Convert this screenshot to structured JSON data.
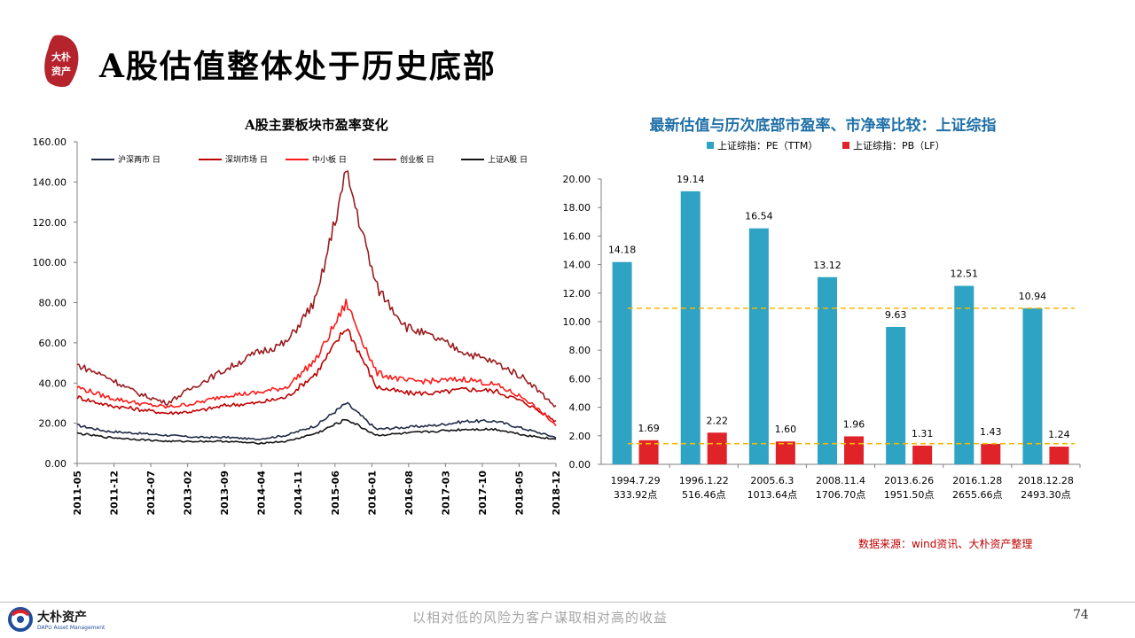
{
  "header": {
    "title": "A股估值整体处于历史底部",
    "logo_text": [
      "大朴",
      "资产"
    ],
    "brand_color": "#b5232d"
  },
  "footer": {
    "brand": "大朴资产",
    "brand_en": "DAPU Asset Management",
    "slogan": "以相对低的风险为客户谋取相对高的收益",
    "page_number": "74"
  },
  "source_note": "数据来源：wind资讯、大朴资产整理",
  "chart_data": [
    {
      "type": "line",
      "title": "A股主要板块市盈率变化",
      "ylim": [
        0,
        160
      ],
      "yticks": [
        "0.00",
        "20.00",
        "40.00",
        "60.00",
        "80.00",
        "100.00",
        "120.00",
        "140.00",
        "160.00"
      ],
      "x_ticks": [
        "2011-05",
        "2011-12",
        "2012-07",
        "2013-02",
        "2013-09",
        "2014-04",
        "2014-11",
        "2015-06",
        "2016-01",
        "2016-08",
        "2017-03",
        "2017-10",
        "2018-05",
        "2018-12"
      ],
      "legend_position": "top",
      "grid": false,
      "series": [
        {
          "name": "沪深两市 日",
          "color": "#1f2a44",
          "values": [
            19,
            16,
            15,
            14,
            13,
            13,
            12,
            14,
            19,
            30,
            17,
            18,
            19,
            21,
            21,
            17,
            13
          ]
        },
        {
          "name": "深圳市场 日",
          "color": "#c00000",
          "values": [
            33,
            29,
            27,
            25,
            26,
            29,
            30,
            33,
            45,
            68,
            38,
            35,
            35,
            37,
            36,
            30,
            21
          ]
        },
        {
          "name": "中小板 日",
          "color": "#ff1a1a",
          "values": [
            38,
            33,
            30,
            28,
            30,
            34,
            35,
            38,
            52,
            80,
            45,
            41,
            41,
            42,
            39,
            32,
            19
          ]
        },
        {
          "name": "创业板 日",
          "color": "#9b1b1f",
          "values": [
            49,
            43,
            35,
            30,
            39,
            47,
            55,
            60,
            82,
            145,
            88,
            68,
            62,
            55,
            50,
            42,
            28
          ]
        },
        {
          "name": "上证A股 日",
          "color": "#141414",
          "values": [
            15,
            13,
            12,
            11,
            11,
            11,
            10,
            11,
            15,
            22,
            14,
            15,
            16,
            17,
            17,
            14,
            12
          ]
        }
      ]
    },
    {
      "type": "bar",
      "title": "最新估值与历次底部市盈率、市净率比较：上证综指",
      "ylim": [
        0,
        20
      ],
      "yticks": [
        "0.00",
        "2.00",
        "4.00",
        "6.00",
        "8.00",
        "10.00",
        "12.00",
        "14.00",
        "16.00",
        "18.00",
        "20.00"
      ],
      "categories": [
        [
          "1994.7.29",
          "333.92点"
        ],
        [
          "1996.1.22",
          "516.46点"
        ],
        [
          "2005.6.3",
          "1013.64点"
        ],
        [
          "2008.11.4",
          "1706.70点"
        ],
        [
          "2013.6.26",
          "1951.50点"
        ],
        [
          "2016.1.28",
          "2655.66点"
        ],
        [
          "2018.12.28",
          "2493.30点"
        ]
      ],
      "legend_position": "top",
      "series": [
        {
          "name": "上证综指：PE（TTM）",
          "color": "#2ea3c3",
          "values": [
            14.18,
            19.14,
            16.54,
            13.12,
            9.63,
            12.51,
            10.94
          ],
          "labels": [
            "14.18",
            "19.14",
            "16.54",
            "13.12",
            "9.63",
            "12.51",
            "10.94"
          ]
        },
        {
          "name": "上证综指：PB（LF）",
          "color": "#e02229",
          "values": [
            1.69,
            2.22,
            1.6,
            1.96,
            1.31,
            1.43,
            1.24
          ],
          "labels": [
            "1.69",
            "2.22",
            "1.60",
            "1.96",
            "1.31",
            "1.43",
            "1.24"
          ]
        }
      ],
      "reference_lines": [
        {
          "value": 10.94,
          "color": "#f5b800"
        },
        {
          "value": 1.45,
          "color": "#f5b800"
        }
      ]
    }
  ]
}
